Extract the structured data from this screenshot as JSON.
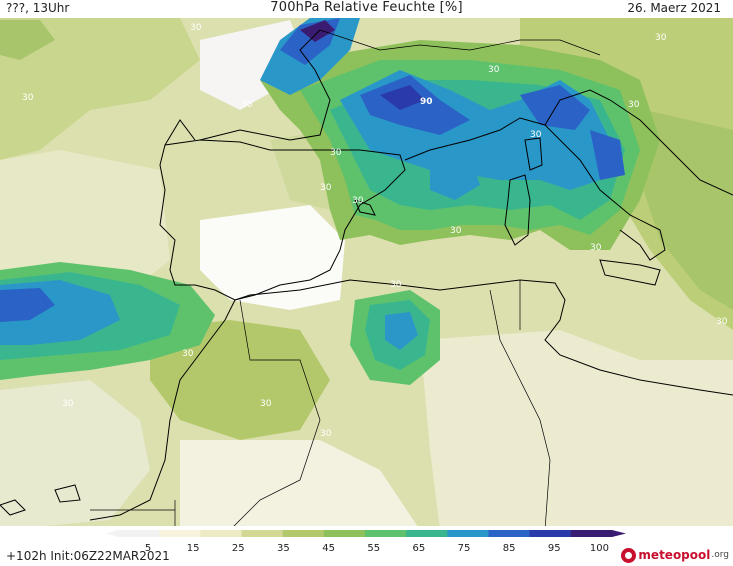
{
  "header": {
    "left": "???, 13Uhr",
    "title": "700hPa Relative Feuchte [%]",
    "date": "26. Maerz 2021"
  },
  "map": {
    "contour_labels": [
      "30",
      "30",
      "30",
      "30",
      "30",
      "30",
      "30",
      "30",
      "30",
      "30",
      "30",
      "30",
      "30",
      "30",
      "30",
      "30",
      "30",
      "30",
      "90"
    ]
  },
  "colorbar": {
    "ticks": [
      "5",
      "15",
      "25",
      "35",
      "45",
      "55",
      "65",
      "75",
      "85",
      "95",
      "100"
    ],
    "colors": [
      "#f2f2f2",
      "#f7f3dd",
      "#ecebc4",
      "#d3d995",
      "#b3c86a",
      "#8ec05c",
      "#5ec26d",
      "#3ab68e",
      "#2a97c9",
      "#2a62c6",
      "#2a3aa8",
      "#3a1d72"
    ]
  },
  "footer": {
    "init": "+102h Init:06Z22MAR2021",
    "logo_text": "meteopool",
    "logo_tld": ".org"
  }
}
